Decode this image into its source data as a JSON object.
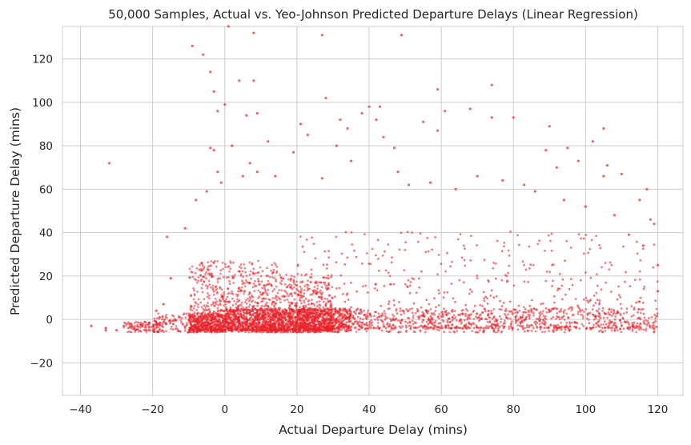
{
  "chart_data": {
    "type": "scatter",
    "title": "50,000 Samples, Actual vs. Yeo-Johnson Predicted Departure Delays (Linear Regression)",
    "xlabel": "Actual Departure Delay (mins)",
    "ylabel": "Predicted Departure Delay (mins)",
    "xlim": [
      -45,
      127
    ],
    "ylim": [
      -35,
      135
    ],
    "x_ticks": [
      -40,
      -20,
      0,
      20,
      40,
      60,
      80,
      100,
      120
    ],
    "x_tick_labels": [
      "−40",
      "−20",
      "0",
      "20",
      "40",
      "60",
      "80",
      "100",
      "120"
    ],
    "y_ticks": [
      -20,
      0,
      20,
      40,
      60,
      80,
      100,
      120
    ],
    "y_tick_labels": [
      "−20",
      "0",
      "20",
      "40",
      "60",
      "80",
      "100",
      "120"
    ],
    "grid": true,
    "point_color": "#e8222a",
    "points": [
      [
        -37,
        -3
      ],
      [
        -33,
        -5
      ],
      [
        -32,
        72
      ],
      [
        -33,
        -4
      ],
      [
        -30,
        -5
      ],
      [
        -28,
        -3
      ],
      [
        -26,
        -2
      ],
      [
        -25,
        -4
      ],
      [
        -23,
        -3
      ],
      [
        -22,
        -5
      ],
      [
        -21,
        -2
      ],
      [
        -16,
        38
      ],
      [
        -9,
        126
      ],
      [
        -6,
        122
      ],
      [
        -4,
        114
      ],
      [
        -3,
        105
      ],
      [
        -2,
        96
      ],
      [
        0,
        99
      ],
      [
        4,
        110
      ],
      [
        8,
        132
      ],
      [
        8,
        110
      ],
      [
        9,
        95
      ],
      [
        6,
        94
      ],
      [
        12,
        82
      ],
      [
        2,
        80
      ],
      [
        -4,
        79
      ],
      [
        -3,
        78
      ],
      [
        1,
        135
      ],
      [
        27,
        131
      ],
      [
        49,
        131
      ],
      [
        28,
        102
      ],
      [
        19,
        77
      ],
      [
        21,
        90
      ],
      [
        23,
        85
      ],
      [
        32,
        92
      ],
      [
        34,
        88
      ],
      [
        31,
        80
      ],
      [
        40,
        98
      ],
      [
        43,
        98
      ],
      [
        44,
        84
      ],
      [
        38,
        95
      ],
      [
        42,
        92
      ],
      [
        47,
        79
      ],
      [
        48,
        68
      ],
      [
        55,
        91
      ],
      [
        59,
        87
      ],
      [
        59,
        106
      ],
      [
        61,
        96
      ],
      [
        68,
        97
      ],
      [
        74,
        108
      ],
      [
        74,
        93
      ],
      [
        80,
        93
      ],
      [
        90,
        89
      ],
      [
        95,
        79
      ],
      [
        89,
        78
      ],
      [
        102,
        82
      ],
      [
        105,
        88
      ],
      [
        106,
        71
      ],
      [
        92,
        70
      ],
      [
        98,
        73
      ],
      [
        110,
        67
      ],
      [
        117,
        60
      ],
      [
        118,
        46
      ],
      [
        119,
        44
      ],
      [
        115,
        55
      ],
      [
        105,
        66
      ],
      [
        35,
        73
      ],
      [
        27,
        65
      ],
      [
        14,
        66
      ],
      [
        7,
        72
      ],
      [
        9,
        68
      ],
      [
        5,
        66
      ],
      [
        -2,
        68
      ],
      [
        -1,
        63
      ],
      [
        -5,
        59
      ],
      [
        -8,
        55
      ],
      [
        -11,
        42
      ],
      [
        -15,
        19
      ],
      [
        -17,
        7
      ],
      [
        -19,
        4
      ],
      [
        51,
        62
      ],
      [
        57,
        63
      ],
      [
        64,
        60
      ],
      [
        70,
        66
      ],
      [
        77,
        64
      ],
      [
        83,
        62
      ],
      [
        86,
        59
      ],
      [
        94,
        55
      ],
      [
        100,
        52
      ],
      [
        108,
        48
      ],
      [
        112,
        39
      ],
      [
        116,
        34
      ],
      [
        120,
        25
      ],
      [
        120,
        13
      ]
    ],
    "cloud": {
      "x_range": [
        -20,
        120
      ],
      "base_prediction": -5,
      "note": "dense band of predictions near 0 across all actual delays"
    }
  }
}
